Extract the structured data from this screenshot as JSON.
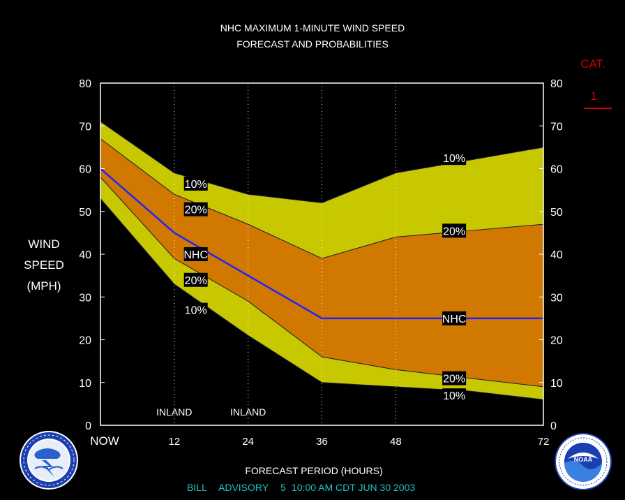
{
  "header": {
    "title_line1": "NHC MAXIMUM 1-MINUTE WIND SPEED",
    "title_line2": "FORECAST AND PROBABILITIES"
  },
  "category_box": {
    "label": "CAT.",
    "value": "1"
  },
  "y_axis": {
    "label_lines": [
      "WIND",
      "SPEED",
      "(MPH)"
    ]
  },
  "x_axis": {
    "label": "FORECAST PERIOD (HOURS)"
  },
  "footer": {
    "storm": "BILL",
    "advisory": "ADVISORY",
    "number": "5",
    "time": "10:00 AM CDT JUN 30 2003"
  },
  "logos": {
    "left": "nws-logo",
    "right": "noaa-logo"
  },
  "colors": {
    "outer_band": "#c8c800",
    "inner_band": "#d07800",
    "nhc_line": "#2222ff",
    "title": "#ffffff",
    "cat": "#cc0000",
    "footer": "#20c0c0"
  },
  "chart_data": {
    "type": "area",
    "x": [
      0,
      12,
      24,
      36,
      48,
      60,
      72
    ],
    "x_tick_labels": [
      "NOW",
      "12",
      "24",
      "36",
      "48",
      "",
      "72"
    ],
    "xlim": [
      0,
      72
    ],
    "ylim": [
      0,
      80
    ],
    "y_ticks": [
      0,
      10,
      20,
      30,
      40,
      50,
      60,
      70,
      80
    ],
    "grid_x": [
      12,
      24,
      36,
      48
    ],
    "series": [
      {
        "name": "10%",
        "values": [
          71,
          59,
          54,
          52,
          59,
          62,
          65
        ]
      },
      {
        "name": "20%",
        "values": [
          67,
          54,
          47,
          39,
          44,
          45.5,
          47
        ]
      },
      {
        "name": "NHC",
        "values": [
          60,
          45,
          35,
          25,
          25,
          25,
          25
        ]
      },
      {
        "name": "20%",
        "values": [
          58,
          39,
          29,
          16,
          13,
          11,
          9
        ]
      },
      {
        "name": "10%",
        "values": [
          53,
          33,
          21,
          10,
          9,
          8,
          6
        ]
      }
    ],
    "annotations": [
      {
        "text": "INLAND",
        "x": 12
      },
      {
        "text": "INLAND",
        "x": 24
      }
    ],
    "series_labels": [
      {
        "text": "10%",
        "x": 15.5,
        "y": 56.5
      },
      {
        "text": "20%",
        "x": 15.5,
        "y": 50.5
      },
      {
        "text": "NHC",
        "x": 15.5,
        "y": 40
      },
      {
        "text": "20%",
        "x": 15.5,
        "y": 34
      },
      {
        "text": "10%",
        "x": 15.5,
        "y": 27
      },
      {
        "text": "10%",
        "x": 57.5,
        "y": 62.5
      },
      {
        "text": "20%",
        "x": 57.5,
        "y": 45.5
      },
      {
        "text": "NHC",
        "x": 57.5,
        "y": 25
      },
      {
        "text": "20%",
        "x": 57.5,
        "y": 11
      },
      {
        "text": "10%",
        "x": 57.5,
        "y": 7
      }
    ]
  }
}
